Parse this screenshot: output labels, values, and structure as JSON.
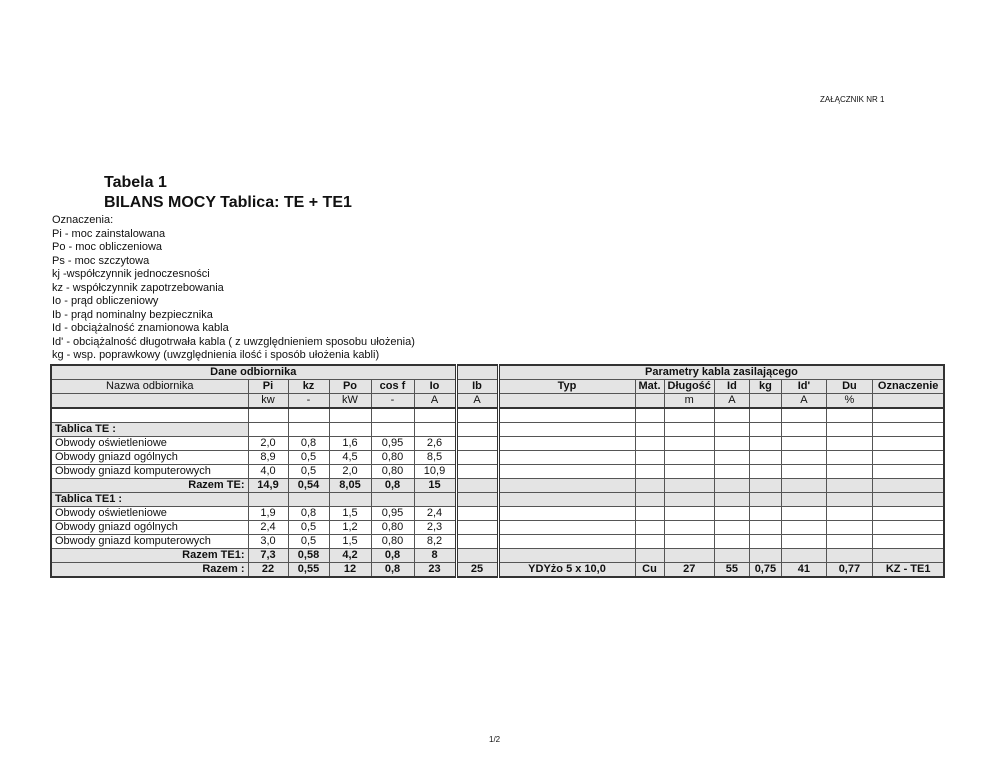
{
  "annex": "ZAŁĄCZNIK NR 1",
  "title1": "Tabela 1",
  "title2": "BILANS MOCY Tablica: TE + TE1",
  "legend": [
    "Oznaczenia:",
    "Pi - moc zainstalowana",
    "Po - moc obliczeniowa",
    "Ps - moc szczytowa",
    "kj -współczynnik  jednoczesności",
    "kz - współczynnik zapotrzebowania",
    "Io - prąd obliczeniowy",
    "Ib - prąd nominalny bezpiecznika",
    "Id - obciążalność znamionowa kabla",
    "Id' - obciążalność długotrwała kabla ( z uwzględnieniem sposobu ułożenia)",
    "kg - wsp. poprawkowy (uwzględnienia ilość i sposób ułożenia kabli)"
  ],
  "table": {
    "group1": "Dane odbiornika",
    "group2": "Parametry kabla zasilającego",
    "headers": [
      "Nazwa odbiornika",
      "Pi",
      "kz",
      "Po",
      "cos f",
      "Io",
      "Ib",
      "Typ",
      "Mat.",
      "Długość",
      "Id",
      "kg",
      "Id'",
      "Du",
      "Oznaczenie"
    ],
    "units": [
      "",
      "kw",
      "-",
      "kW",
      "-",
      "A",
      "A",
      "",
      "",
      "m",
      "A",
      "",
      "A",
      "%",
      ""
    ],
    "rows": [
      {
        "shade": "none",
        "bold": false,
        "align": "l",
        "cells": [
          "",
          "",
          "",
          "",
          "",
          "",
          "",
          "",
          "",
          "",
          "",
          "",
          "",
          "",
          ""
        ]
      },
      {
        "shade": "label",
        "bold": true,
        "align": "l",
        "cells": [
          "Tablica TE :",
          "",
          "",
          "",
          "",
          "",
          "",
          "",
          "",
          "",
          "",
          "",
          "",
          "",
          ""
        ]
      },
      {
        "shade": "none",
        "bold": false,
        "align": "l",
        "cells": [
          "Obwody oświetleniowe",
          "2,0",
          "0,8",
          "1,6",
          "0,95",
          "2,6",
          "",
          "",
          "",
          "",
          "",
          "",
          "",
          "",
          ""
        ]
      },
      {
        "shade": "none",
        "bold": false,
        "align": "l",
        "cells": [
          "Obwody gniazd ogólnych",
          "8,9",
          "0,5",
          "4,5",
          "0,80",
          "8,5",
          "",
          "",
          "",
          "",
          "",
          "",
          "",
          "",
          ""
        ]
      },
      {
        "shade": "none",
        "bold": false,
        "align": "l",
        "cells": [
          "Obwody gniazd komputerowych",
          "4,0",
          "0,5",
          "2,0",
          "0,80",
          "10,9",
          "",
          "",
          "",
          "",
          "",
          "",
          "",
          "",
          ""
        ]
      },
      {
        "shade": "all",
        "bold": true,
        "align": "r",
        "cells": [
          "Razem TE:",
          "14,9",
          "0,54",
          "8,05",
          "0,8",
          "15",
          "",
          "",
          "",
          "",
          "",
          "",
          "",
          "",
          ""
        ]
      },
      {
        "shade": "all",
        "bold": true,
        "align": "l",
        "cells": [
          "Tablica TE1 :",
          "",
          "",
          "",
          "",
          "",
          "",
          "",
          "",
          "",
          "",
          "",
          "",
          "",
          ""
        ]
      },
      {
        "shade": "none",
        "bold": false,
        "align": "l",
        "cells": [
          "Obwody oświetleniowe",
          "1,9",
          "0,8",
          "1,5",
          "0,95",
          "2,4",
          "",
          "",
          "",
          "",
          "",
          "",
          "",
          "",
          ""
        ]
      },
      {
        "shade": "none",
        "bold": false,
        "align": "l",
        "cells": [
          "Obwody gniazd ogólnych",
          "2,4",
          "0,5",
          "1,2",
          "0,80",
          "2,3",
          "",
          "",
          "",
          "",
          "",
          "",
          "",
          "",
          ""
        ]
      },
      {
        "shade": "none",
        "bold": false,
        "align": "l",
        "cells": [
          "Obwody gniazd komputerowych",
          "3,0",
          "0,5",
          "1,5",
          "0,80",
          "8,2",
          "",
          "",
          "",
          "",
          "",
          "",
          "",
          "",
          ""
        ]
      },
      {
        "shade": "all",
        "bold": true,
        "align": "r",
        "cells": [
          "Razem TE1:",
          "7,3",
          "0,58",
          "4,2",
          "0,8",
          "8",
          "",
          "",
          "",
          "",
          "",
          "",
          "",
          "",
          ""
        ]
      },
      {
        "shade": "all",
        "bold": true,
        "align": "r",
        "cells": [
          "Razem :",
          "22",
          "0,55",
          "12",
          "0,8",
          "23",
          "25",
          "YDYżo     5 x     10,0",
          "Cu",
          "27",
          "55",
          "0,75",
          "41",
          "0,77",
          "KZ - TE1"
        ]
      }
    ]
  },
  "page_number": "1/2"
}
